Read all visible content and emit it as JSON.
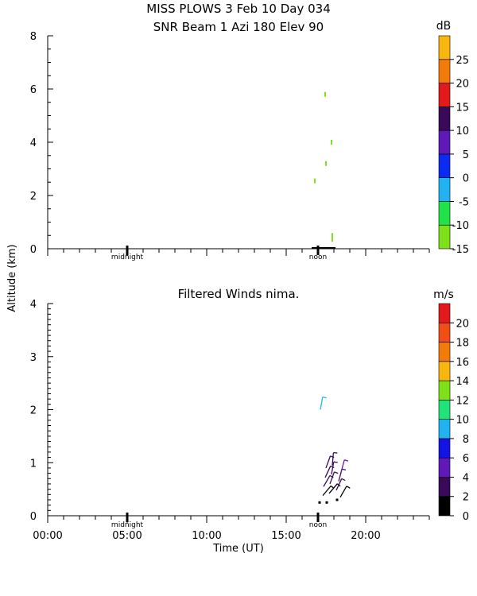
{
  "header": {
    "title1": "MISS PLOWS    3 Feb 10 Day 034",
    "title2": "SNR Beam  1 Azi 180 Elev 90"
  },
  "shared_axes": {
    "ylabel": "Altitude (km)",
    "xlabel": "Time (UT)",
    "xtick_labels": [
      "00:00",
      "05:00",
      "10:00",
      "15:00",
      "20:00"
    ],
    "marker_midnight": "midnight",
    "marker_noon": "noon"
  },
  "colors": {
    "snr_scale": [
      "#7fe11a",
      "#22e24a",
      "#21b3f1",
      "#0b2cf0",
      "#6018b8",
      "#3a0a5a",
      "#e31a1c",
      "#f47a0a",
      "#f7b70e"
    ],
    "wind_scale": [
      "#000000",
      "#3a0a5a",
      "#6018b8",
      "#1313e6",
      "#21b3f1",
      "#22e27a",
      "#7fe11a",
      "#f7b70e",
      "#f47a0a",
      "#f04e14",
      "#e31a1c"
    ]
  },
  "chart_data": [
    {
      "type": "heatmap",
      "title": "SNR Beam  1 Azi 180 Elev 90",
      "xlabel": "",
      "ylabel": "Altitude (km)",
      "xlim": [
        0,
        24
      ],
      "ylim": [
        0,
        8
      ],
      "yticks": [
        "0",
        "2",
        "4",
        "6",
        "8"
      ],
      "colorbar": {
        "unit": "dB",
        "ticks": [
          "-15",
          "-10",
          "-5",
          "0",
          "5",
          "10",
          "15",
          "20",
          "25"
        ],
        "range": [
          -15,
          30
        ]
      },
      "points": [
        {
          "t": 17.45,
          "alt": 5.8,
          "db": -13
        },
        {
          "t": 17.5,
          "alt": 3.2,
          "db": -11
        },
        {
          "t": 17.85,
          "alt": 4.0,
          "db": -13
        },
        {
          "t": 16.8,
          "alt": 2.55,
          "db": -13
        },
        {
          "t": 17.9,
          "alt": 0.35,
          "db": -13
        },
        {
          "t": 17.9,
          "alt": 0.5,
          "db": -12
        }
      ]
    },
    {
      "type": "scatter",
      "title": "Filtered Winds nima.",
      "xlabel": "Time (UT)",
      "ylabel": "Altitude (km)",
      "xlim": [
        0,
        24
      ],
      "ylim": [
        0,
        4
      ],
      "yticks": [
        "0",
        "1",
        "2",
        "3",
        "4"
      ],
      "colorbar": {
        "unit": "m/s",
        "ticks": [
          "0",
          "2",
          "4",
          "6",
          "8",
          "10",
          "12",
          "14",
          "16",
          "18",
          "20"
        ],
        "range": [
          0,
          22
        ]
      },
      "barbs": [
        {
          "t": 17.15,
          "alt": 2.0,
          "speed": 9,
          "dir": 10
        },
        {
          "t": 17.1,
          "alt": 0.25,
          "speed": 0.5,
          "dir": 0
        },
        {
          "t": 17.55,
          "alt": 0.25,
          "speed": 0.5,
          "dir": 0
        },
        {
          "t": 18.2,
          "alt": 0.3,
          "speed": 0.5,
          "dir": 0
        },
        {
          "t": 18.4,
          "alt": 0.35,
          "speed": 1.5,
          "dir": 30
        },
        {
          "t": 17.3,
          "alt": 0.38,
          "speed": 1,
          "dir": 40
        },
        {
          "t": 17.7,
          "alt": 0.42,
          "speed": 1.5,
          "dir": 40
        },
        {
          "t": 18.15,
          "alt": 0.48,
          "speed": 2,
          "dir": 25
        },
        {
          "t": 17.35,
          "alt": 0.55,
          "speed": 2.5,
          "dir": 30
        },
        {
          "t": 17.75,
          "alt": 0.6,
          "speed": 3,
          "dir": 20
        },
        {
          "t": 18.3,
          "alt": 0.65,
          "speed": 3,
          "dir": 15
        },
        {
          "t": 17.45,
          "alt": 0.72,
          "speed": 3,
          "dir": 25
        },
        {
          "t": 17.85,
          "alt": 0.78,
          "speed": 3.5,
          "dir": 10
        },
        {
          "t": 18.45,
          "alt": 0.82,
          "speed": 4,
          "dir": 15
        },
        {
          "t": 17.5,
          "alt": 0.9,
          "speed": 3.5,
          "dir": 20
        },
        {
          "t": 17.9,
          "alt": 0.95,
          "speed": 3,
          "dir": 5
        }
      ]
    }
  ]
}
